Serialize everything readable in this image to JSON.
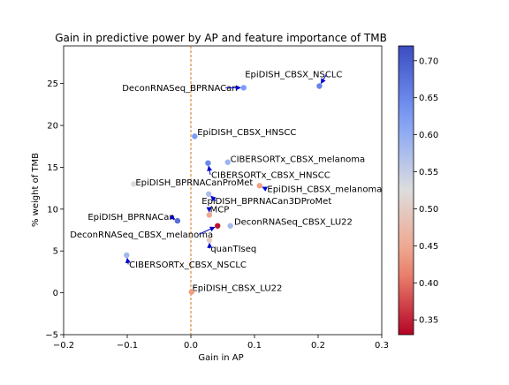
{
  "chart_data": {
    "type": "scatter",
    "title": "Gain in predictive power by AP and feature importance of TMB",
    "xlabel": "Gain in AP",
    "ylabel": "% weight of TMB",
    "xlim": [
      -0.2,
      0.3
    ],
    "ylim": [
      -5,
      29.5
    ],
    "xticks": [
      -0.2,
      -0.1,
      0.0,
      0.1,
      0.2,
      0.3
    ],
    "xtick_labels": [
      "−0.2",
      "−0.1",
      "0.0",
      "0.1",
      "0.2",
      "0.3"
    ],
    "yticks": [
      -5,
      0,
      5,
      10,
      15,
      20,
      25
    ],
    "ytick_labels": [
      "−5",
      "0",
      "5",
      "10",
      "15",
      "20",
      "25"
    ],
    "reference_line": {
      "x": 0,
      "style": "dashed",
      "color": "#cc6600"
    },
    "colorbar": {
      "min": 0.33,
      "max": 0.72,
      "ticks": [
        0.35,
        0.4,
        0.45,
        0.5,
        0.55,
        0.6,
        0.65,
        0.7
      ],
      "tick_labels": [
        "0.35",
        "0.40",
        "0.45",
        "0.50",
        "0.55",
        "0.60",
        "0.65",
        "0.70"
      ],
      "colormap": "coolwarm_r"
    },
    "grid": false,
    "arrow_color": "#0000cc",
    "points": [
      {
        "label": "EpiDISH_CBSX_NSCLC",
        "x": 0.202,
        "y": 24.7,
        "c": 0.655,
        "label_x": 0.085,
        "label_y": 26.1
      },
      {
        "label": "DeconRNASeq_BPRNACan",
        "x": 0.083,
        "y": 24.5,
        "c": 0.625,
        "label_x": -0.108,
        "label_y": 24.5
      },
      {
        "label": "EpiDISH_CBSX_HNSCC",
        "x": 0.006,
        "y": 18.7,
        "c": 0.625,
        "label_x": 0.01,
        "label_y": 19.2
      },
      {
        "label": "CIBERSORTx_CBSX_melanoma",
        "x": 0.058,
        "y": 15.6,
        "c": 0.59,
        "label_x": 0.062,
        "label_y": 16.0
      },
      {
        "label": "CIBERSORTx_CBSX_HNSCC",
        "x": 0.027,
        "y": 15.5,
        "c": 0.65,
        "label_x": 0.032,
        "label_y": 14.1
      },
      {
        "label": "EpiDISH_CBSX_melanoma",
        "x": 0.108,
        "y": 12.8,
        "c": 0.435,
        "label_x": 0.12,
        "label_y": 12.4
      },
      {
        "label": "EpiDISH_BPRNACanProMet",
        "x": -0.09,
        "y": 13.0,
        "c": 0.52,
        "label_x": -0.087,
        "label_y": 13.2
      },
      {
        "label": "EpiDISH_BPRNACan3DProMet",
        "x": 0.028,
        "y": 11.8,
        "c": 0.575,
        "label_x": 0.017,
        "label_y": 11.0
      },
      {
        "label": "MCP",
        "x": 0.029,
        "y": 9.3,
        "c": 0.45,
        "label_x": 0.03,
        "label_y": 10.0
      },
      {
        "label": "EpiDISH_BPRNACan",
        "x": -0.021,
        "y": 8.6,
        "c": 0.68,
        "label_x": -0.162,
        "label_y": 9.1
      },
      {
        "label": "DeconRNASeq_CBSX_LU22",
        "x": 0.062,
        "y": 8.0,
        "c": 0.58,
        "label_x": 0.068,
        "label_y": 8.5
      },
      {
        "label": "DeconRNASeq_CBSX_melanoma",
        "x": 0.042,
        "y": 8.0,
        "c": 0.34,
        "label_x": -0.19,
        "label_y": 7.0
      },
      {
        "label": "quanTIseq",
        "x": 0.029,
        "y": 6.3,
        "c": 0.5,
        "label_x": 0.031,
        "label_y": 5.3
      },
      {
        "label": "CIBERSORTx_CBSX_NSCLC",
        "x": -0.101,
        "y": 4.5,
        "c": 0.585,
        "label_x": -0.097,
        "label_y": 3.4
      },
      {
        "label": "EpiDISH_CBSX_LU22",
        "x": 0.001,
        "y": 0.1,
        "c": 0.43,
        "label_x": 0.002,
        "label_y": 0.6
      }
    ]
  }
}
